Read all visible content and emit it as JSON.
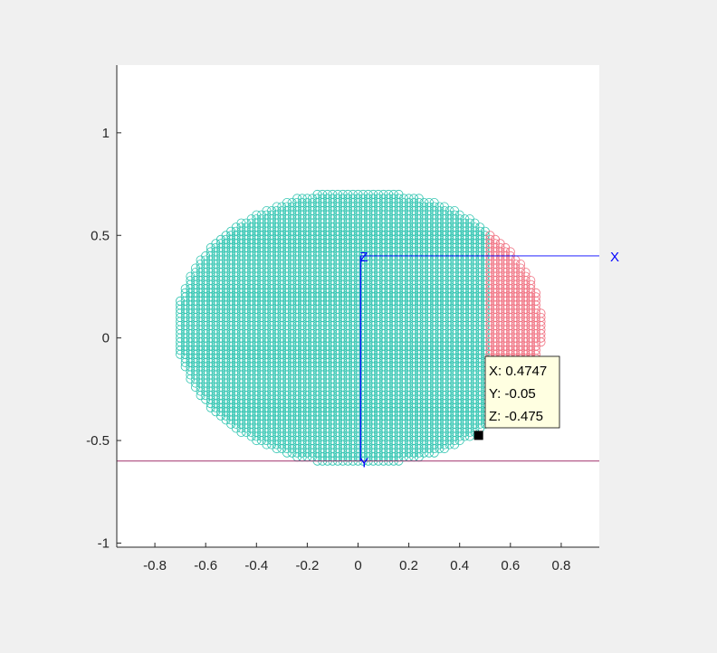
{
  "chart_data": {
    "type": "scatter",
    "xlim": [
      -0.95,
      0.95
    ],
    "ylim": [
      -1.02,
      1.33
    ],
    "grid": false,
    "x_ticks": [
      {
        "value": -0.8,
        "label": "-0.8"
      },
      {
        "value": -0.6,
        "label": "-0.6"
      },
      {
        "value": -0.4,
        "label": "-0.4"
      },
      {
        "value": -0.2,
        "label": "-0.2"
      },
      {
        "value": 0,
        "label": "0"
      },
      {
        "value": 0.2,
        "label": "0.2"
      },
      {
        "value": 0.4,
        "label": "0.4"
      },
      {
        "value": 0.6,
        "label": "0.6"
      },
      {
        "value": 0.8,
        "label": "0.8"
      }
    ],
    "y_ticks": [
      {
        "value": -1,
        "label": "-1"
      },
      {
        "value": -0.5,
        "label": "-0.5"
      },
      {
        "value": 0,
        "label": "0"
      },
      {
        "value": 0.5,
        "label": "0.5"
      },
      {
        "value": 1,
        "label": "1"
      }
    ],
    "point_grid": {
      "dx": 0.02,
      "dy": 0.02,
      "marker": "circle"
    },
    "series": [
      {
        "color": "#2ec4b0",
        "region": {
          "shape": "ellipse",
          "center": [
            0.005,
            0.05
          ],
          "radius_x": 0.72,
          "radius_y": 0.67,
          "x_max": 0.5,
          "y_min": -0.6
        }
      },
      {
        "color": "#f07080",
        "region": {
          "shape": "ellipse",
          "center": [
            0.005,
            0.05
          ],
          "radius_x": 0.72,
          "radius_y": 0.67,
          "x_min": 0.5,
          "y_min": -0.6
        }
      }
    ],
    "horizontal_line": {
      "y": -0.6,
      "color": "#a0306a"
    },
    "frame_axes": {
      "origin": [
        0.01,
        0.4
      ],
      "x_end": 0.95,
      "y_end": -0.6,
      "color": "#0000ff",
      "x_label": "X",
      "y_label": "Y",
      "z_label": "Z"
    },
    "datatip": {
      "point": [
        0.4747,
        -0.475
      ],
      "lines": [
        "X: 0.4747",
        "Y: -0.05",
        "Z: -0.475"
      ]
    }
  }
}
